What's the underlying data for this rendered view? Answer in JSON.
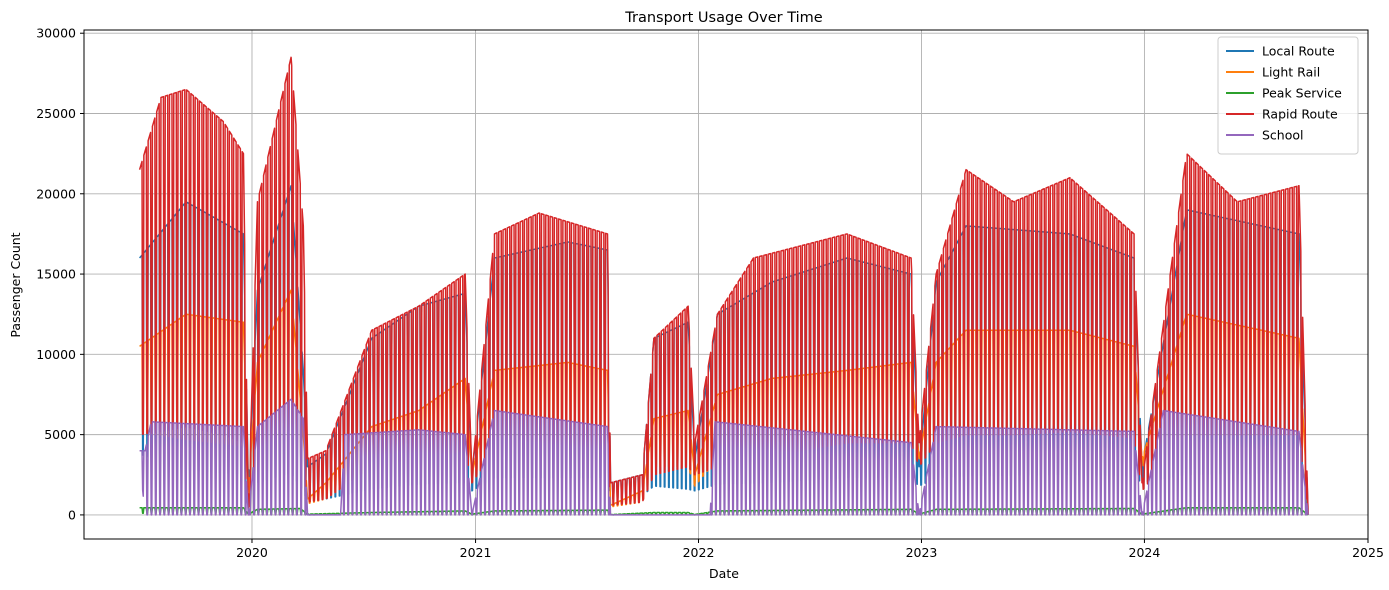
{
  "chart_data": {
    "type": "line",
    "title": "Transport Usage Over Time",
    "xlabel": "Date",
    "ylabel": "Passenger Count",
    "xlim": [
      "2019-04-01",
      "2025-01-01"
    ],
    "ylim": [
      -1500,
      30200
    ],
    "x_ticks": [
      "2020",
      "2021",
      "2022",
      "2023",
      "2024",
      "2025"
    ],
    "y_ticks": [
      0,
      5000,
      10000,
      15000,
      20000,
      25000,
      30000
    ],
    "grid": true,
    "legend_position": "top-right",
    "pattern": "weekly oscillation: weekday peaks, weekend troughs",
    "series": [
      {
        "name": "Local Route",
        "color": "#1f77b4",
        "keyframes": [
          [
            "2019-07-01",
            16000,
            3800
          ],
          [
            "2019-09-15",
            19500,
            2800
          ],
          [
            "2019-12-18",
            17500,
            2500
          ],
          [
            "2019-12-26",
            2000,
            1500
          ],
          [
            "2020-01-10",
            14000,
            2000
          ],
          [
            "2020-03-05",
            20500,
            2600
          ],
          [
            "2020-03-25",
            9000,
            1500
          ],
          [
            "2020-04-01",
            3000,
            800
          ],
          [
            "2020-05-01",
            3800,
            1000
          ],
          [
            "2020-07-15",
            11000,
            1600
          ],
          [
            "2020-09-30",
            13000,
            1900
          ],
          [
            "2020-12-15",
            13800,
            2000
          ],
          [
            "2020-12-26",
            2500,
            1500
          ],
          [
            "2021-02-01",
            16000,
            2300
          ],
          [
            "2021-06-01",
            17000,
            2300
          ],
          [
            "2021-08-05",
            16500,
            2300
          ],
          [
            "2021-08-10",
            2000,
            1000
          ],
          [
            "2021-10-01",
            2500,
            1200
          ],
          [
            "2021-10-20",
            11000,
            1800
          ],
          [
            "2021-12-15",
            12000,
            1600
          ],
          [
            "2021-12-26",
            3500,
            1500
          ],
          [
            "2022-02-01",
            12500,
            1900
          ],
          [
            "2022-05-01",
            14500,
            2000
          ],
          [
            "2022-09-01",
            16000,
            2300
          ],
          [
            "2022-12-15",
            15000,
            2300
          ],
          [
            "2022-12-28",
            3000,
            1800
          ],
          [
            "2023-01-25",
            14500,
            2300
          ],
          [
            "2023-03-15",
            18000,
            2400
          ],
          [
            "2023-09-01",
            17500,
            2500
          ],
          [
            "2023-12-15",
            16000,
            2400
          ],
          [
            "2023-12-28",
            3000,
            2000
          ],
          [
            "2024-03-10",
            19000,
            2500
          ],
          [
            "2024-09-10",
            17500,
            2600
          ],
          [
            "2024-09-25",
            0,
            0
          ]
        ]
      },
      {
        "name": "Light Rail",
        "color": "#ff7f0e",
        "keyframes": [
          [
            "2019-07-01",
            10500,
            5200
          ],
          [
            "2019-09-15",
            12500,
            4700
          ],
          [
            "2019-12-18",
            12000,
            4300
          ],
          [
            "2019-12-26",
            1800,
            1000
          ],
          [
            "2020-01-10",
            9500,
            3500
          ],
          [
            "2020-03-05",
            14000,
            4800
          ],
          [
            "2020-03-25",
            5000,
            2000
          ],
          [
            "2020-04-01",
            1000,
            700
          ],
          [
            "2020-05-01",
            2000,
            1000
          ],
          [
            "2020-07-15",
            5500,
            3000
          ],
          [
            "2020-09-30",
            6500,
            3500
          ],
          [
            "2020-12-15",
            8500,
            4000
          ],
          [
            "2020-12-26",
            2500,
            2000
          ],
          [
            "2021-02-01",
            9000,
            4000
          ],
          [
            "2021-06-01",
            9500,
            4200
          ],
          [
            "2021-08-05",
            9000,
            4000
          ],
          [
            "2021-08-10",
            600,
            500
          ],
          [
            "2021-10-01",
            1500,
            800
          ],
          [
            "2021-10-20",
            6000,
            3000
          ],
          [
            "2021-12-15",
            6500,
            3000
          ],
          [
            "2021-12-26",
            2500,
            1800
          ],
          [
            "2022-02-01",
            7500,
            3500
          ],
          [
            "2022-05-01",
            8500,
            4000
          ],
          [
            "2022-09-01",
            9000,
            4500
          ],
          [
            "2022-12-15",
            9500,
            5000
          ],
          [
            "2022-12-28",
            3500,
            3000
          ],
          [
            "2023-01-25",
            9500,
            5000
          ],
          [
            "2023-03-15",
            11500,
            5500
          ],
          [
            "2023-09-01",
            11500,
            5600
          ],
          [
            "2023-12-15",
            10500,
            5300
          ],
          [
            "2023-12-28",
            3500,
            3000
          ],
          [
            "2024-03-10",
            12500,
            5500
          ],
          [
            "2024-09-10",
            11000,
            6000
          ],
          [
            "2024-09-25",
            0,
            0
          ]
        ]
      },
      {
        "name": "Peak Service",
        "color": "#2ca02c",
        "keyframes": [
          [
            "2019-07-01",
            450,
            100
          ],
          [
            "2019-12-18",
            450,
            100
          ],
          [
            "2019-12-26",
            50,
            0
          ],
          [
            "2020-01-10",
            350,
            50
          ],
          [
            "2020-03-20",
            400,
            50
          ],
          [
            "2020-04-01",
            50,
            0
          ],
          [
            "2020-07-15",
            150,
            50
          ],
          [
            "2020-12-15",
            250,
            50
          ],
          [
            "2020-12-26",
            50,
            0
          ],
          [
            "2021-02-01",
            250,
            50
          ],
          [
            "2021-08-05",
            300,
            50
          ],
          [
            "2021-08-10",
            20,
            0
          ],
          [
            "2021-10-20",
            150,
            50
          ],
          [
            "2021-12-15",
            150,
            50
          ],
          [
            "2021-12-26",
            30,
            0
          ],
          [
            "2022-02-01",
            250,
            50
          ],
          [
            "2022-12-15",
            350,
            50
          ],
          [
            "2022-12-28",
            50,
            0
          ],
          [
            "2023-01-25",
            350,
            50
          ],
          [
            "2023-12-15",
            400,
            50
          ],
          [
            "2023-12-28",
            50,
            0
          ],
          [
            "2024-03-10",
            450,
            50
          ],
          [
            "2024-09-10",
            450,
            50
          ],
          [
            "2024-09-25",
            0,
            0
          ]
        ]
      },
      {
        "name": "Rapid Route",
        "color": "#d62728",
        "keyframes": [
          [
            "2019-07-01",
            21500,
            5000
          ],
          [
            "2019-08-05",
            26000,
            5200
          ],
          [
            "2019-09-15",
            26500,
            5500
          ],
          [
            "2019-11-15",
            24500,
            5000
          ],
          [
            "2019-12-18",
            22500,
            4500
          ],
          [
            "2019-12-26",
            0,
            0
          ],
          [
            "2020-01-10",
            19500,
            4000
          ],
          [
            "2020-03-05",
            28500,
            4800
          ],
          [
            "2020-03-25",
            18000,
            3000
          ],
          [
            "2020-04-01",
            3500,
            800
          ],
          [
            "2020-05-01",
            4000,
            1000
          ],
          [
            "2020-07-15",
            11500,
            3000
          ],
          [
            "2020-09-30",
            13000,
            3500
          ],
          [
            "2020-12-15",
            15000,
            4000
          ],
          [
            "2020-12-26",
            2500,
            2000
          ],
          [
            "2021-02-01",
            17500,
            4000
          ],
          [
            "2021-04-15",
            18800,
            4200
          ],
          [
            "2021-08-05",
            17500,
            3500
          ],
          [
            "2021-08-10",
            2000,
            600
          ],
          [
            "2021-10-01",
            2500,
            800
          ],
          [
            "2021-10-20",
            11000,
            2500
          ],
          [
            "2021-12-15",
            13000,
            3000
          ],
          [
            "2021-12-26",
            4500,
            2500
          ],
          [
            "2022-02-01",
            12500,
            3000
          ],
          [
            "2022-04-01",
            16000,
            3500
          ],
          [
            "2022-09-01",
            17500,
            4500
          ],
          [
            "2022-12-15",
            16000,
            4500
          ],
          [
            "2022-12-28",
            4500,
            3000
          ],
          [
            "2023-01-25",
            15000,
            4500
          ],
          [
            "2023-03-15",
            21500,
            5000
          ],
          [
            "2023-06-01",
            19500,
            5000
          ],
          [
            "2023-09-01",
            21000,
            5200
          ],
          [
            "2023-12-15",
            17500,
            4800
          ],
          [
            "2023-12-28",
            2000,
            1500
          ],
          [
            "2024-03-10",
            22500,
            5000
          ],
          [
            "2024-06-01",
            19500,
            5000
          ],
          [
            "2024-09-10",
            20500,
            5000
          ],
          [
            "2024-09-25",
            0,
            0
          ]
        ]
      },
      {
        "name": "School",
        "color": "#9467bd",
        "keyframes": [
          [
            "2019-07-01",
            4000,
            3500
          ],
          [
            "2019-07-10",
            4000,
            0
          ],
          [
            "2019-07-20",
            5800,
            0
          ],
          [
            "2019-12-18",
            5500,
            0
          ],
          [
            "2019-12-26",
            0,
            0
          ],
          [
            "2020-01-10",
            5500,
            0
          ],
          [
            "2020-03-05",
            7200,
            0
          ],
          [
            "2020-03-25",
            6000,
            0
          ],
          [
            "2020-04-01",
            0,
            0
          ],
          [
            "2020-05-25",
            0,
            0
          ],
          [
            "2020-06-01",
            5000,
            0
          ],
          [
            "2020-09-30",
            5300,
            0
          ],
          [
            "2020-12-15",
            5000,
            0
          ],
          [
            "2020-12-26",
            0,
            0
          ],
          [
            "2021-02-01",
            6500,
            0
          ],
          [
            "2021-08-05",
            5500,
            0
          ],
          [
            "2021-08-10",
            0,
            0
          ],
          [
            "2021-10-20",
            0,
            0
          ],
          [
            "2022-01-20",
            0,
            0
          ],
          [
            "2022-01-28",
            5800,
            0
          ],
          [
            "2022-12-15",
            4500,
            0
          ],
          [
            "2022-12-28",
            0,
            0
          ],
          [
            "2023-01-25",
            5500,
            0
          ],
          [
            "2023-12-15",
            5200,
            0
          ],
          [
            "2023-12-28",
            0,
            0
          ],
          [
            "2024-02-01",
            6500,
            0
          ],
          [
            "2024-09-10",
            5200,
            0
          ],
          [
            "2024-09-25",
            0,
            0
          ]
        ]
      }
    ]
  }
}
